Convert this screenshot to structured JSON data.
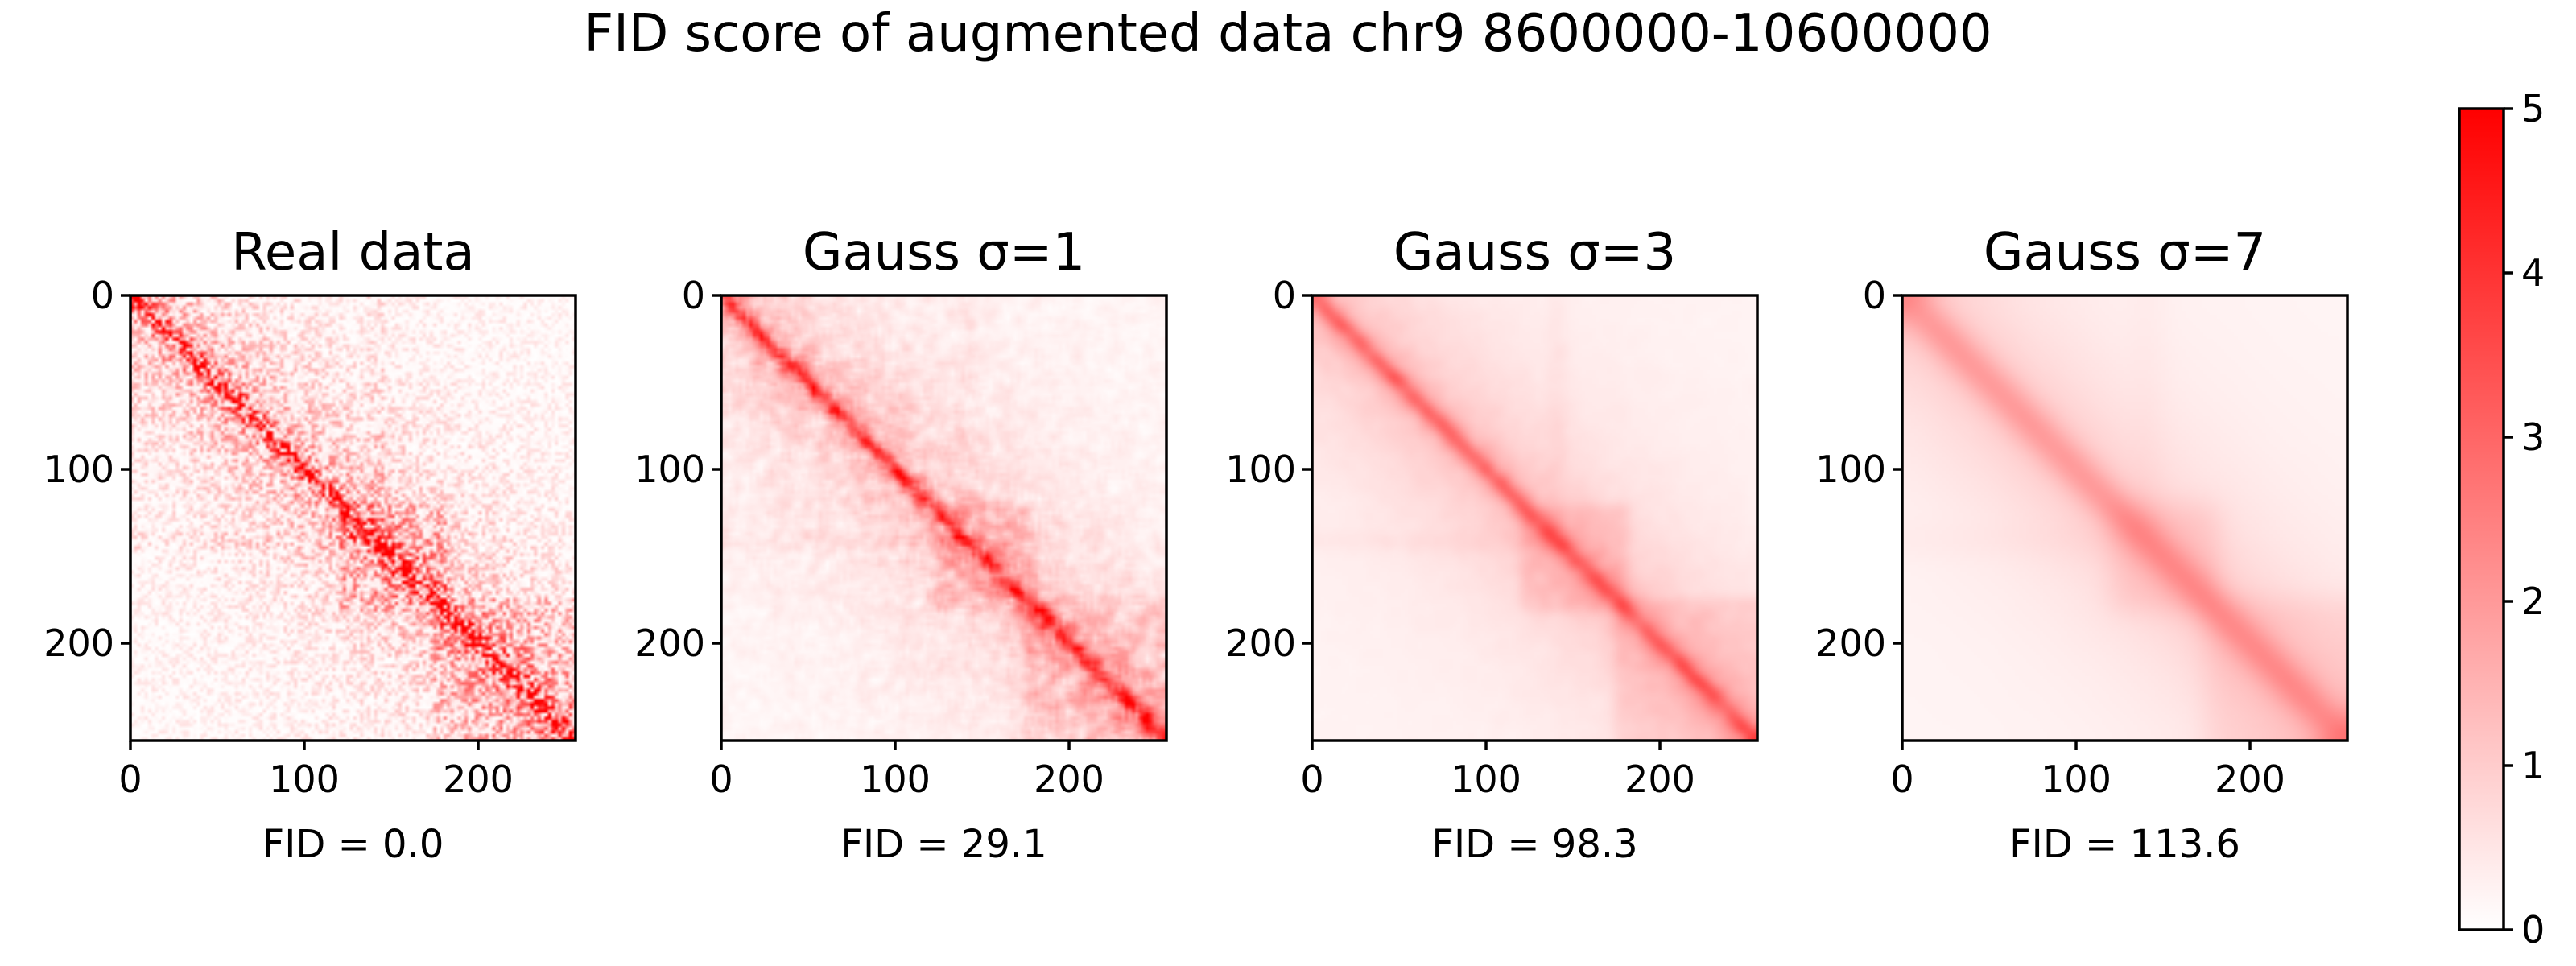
{
  "figure": {
    "title": "FID score of augmented data chr9 8600000-10600000"
  },
  "chart_data": {
    "type": "heatmap",
    "title": "FID score of augmented data chr9 8600000-10600000",
    "matrix_size": 256,
    "x_ticks": [
      0,
      100,
      200
    ],
    "y_ticks": [
      0,
      100,
      200
    ],
    "xlim": [
      0,
      255
    ],
    "ylim": [
      255,
      0
    ],
    "colormap": {
      "low_color": "#ffffff",
      "high_color": "#ff0000",
      "vmin": 0,
      "vmax": 5,
      "ticks": [
        0,
        1,
        2,
        3,
        4,
        5
      ]
    },
    "panels": [
      {
        "title": "Real data",
        "sigma": 0,
        "fid_label": "FID = 0.0",
        "fid": 0.0
      },
      {
        "title": "Gauss σ=1",
        "sigma": 1,
        "fid_label": "FID = 29.1",
        "fid": 29.1
      },
      {
        "title": "Gauss σ=3",
        "sigma": 3,
        "fid_label": "FID = 98.3",
        "fid": 98.3
      },
      {
        "title": "Gauss σ=7",
        "sigma": 7,
        "fid_label": "FID = 113.6",
        "fid": 113.6
      }
    ]
  }
}
